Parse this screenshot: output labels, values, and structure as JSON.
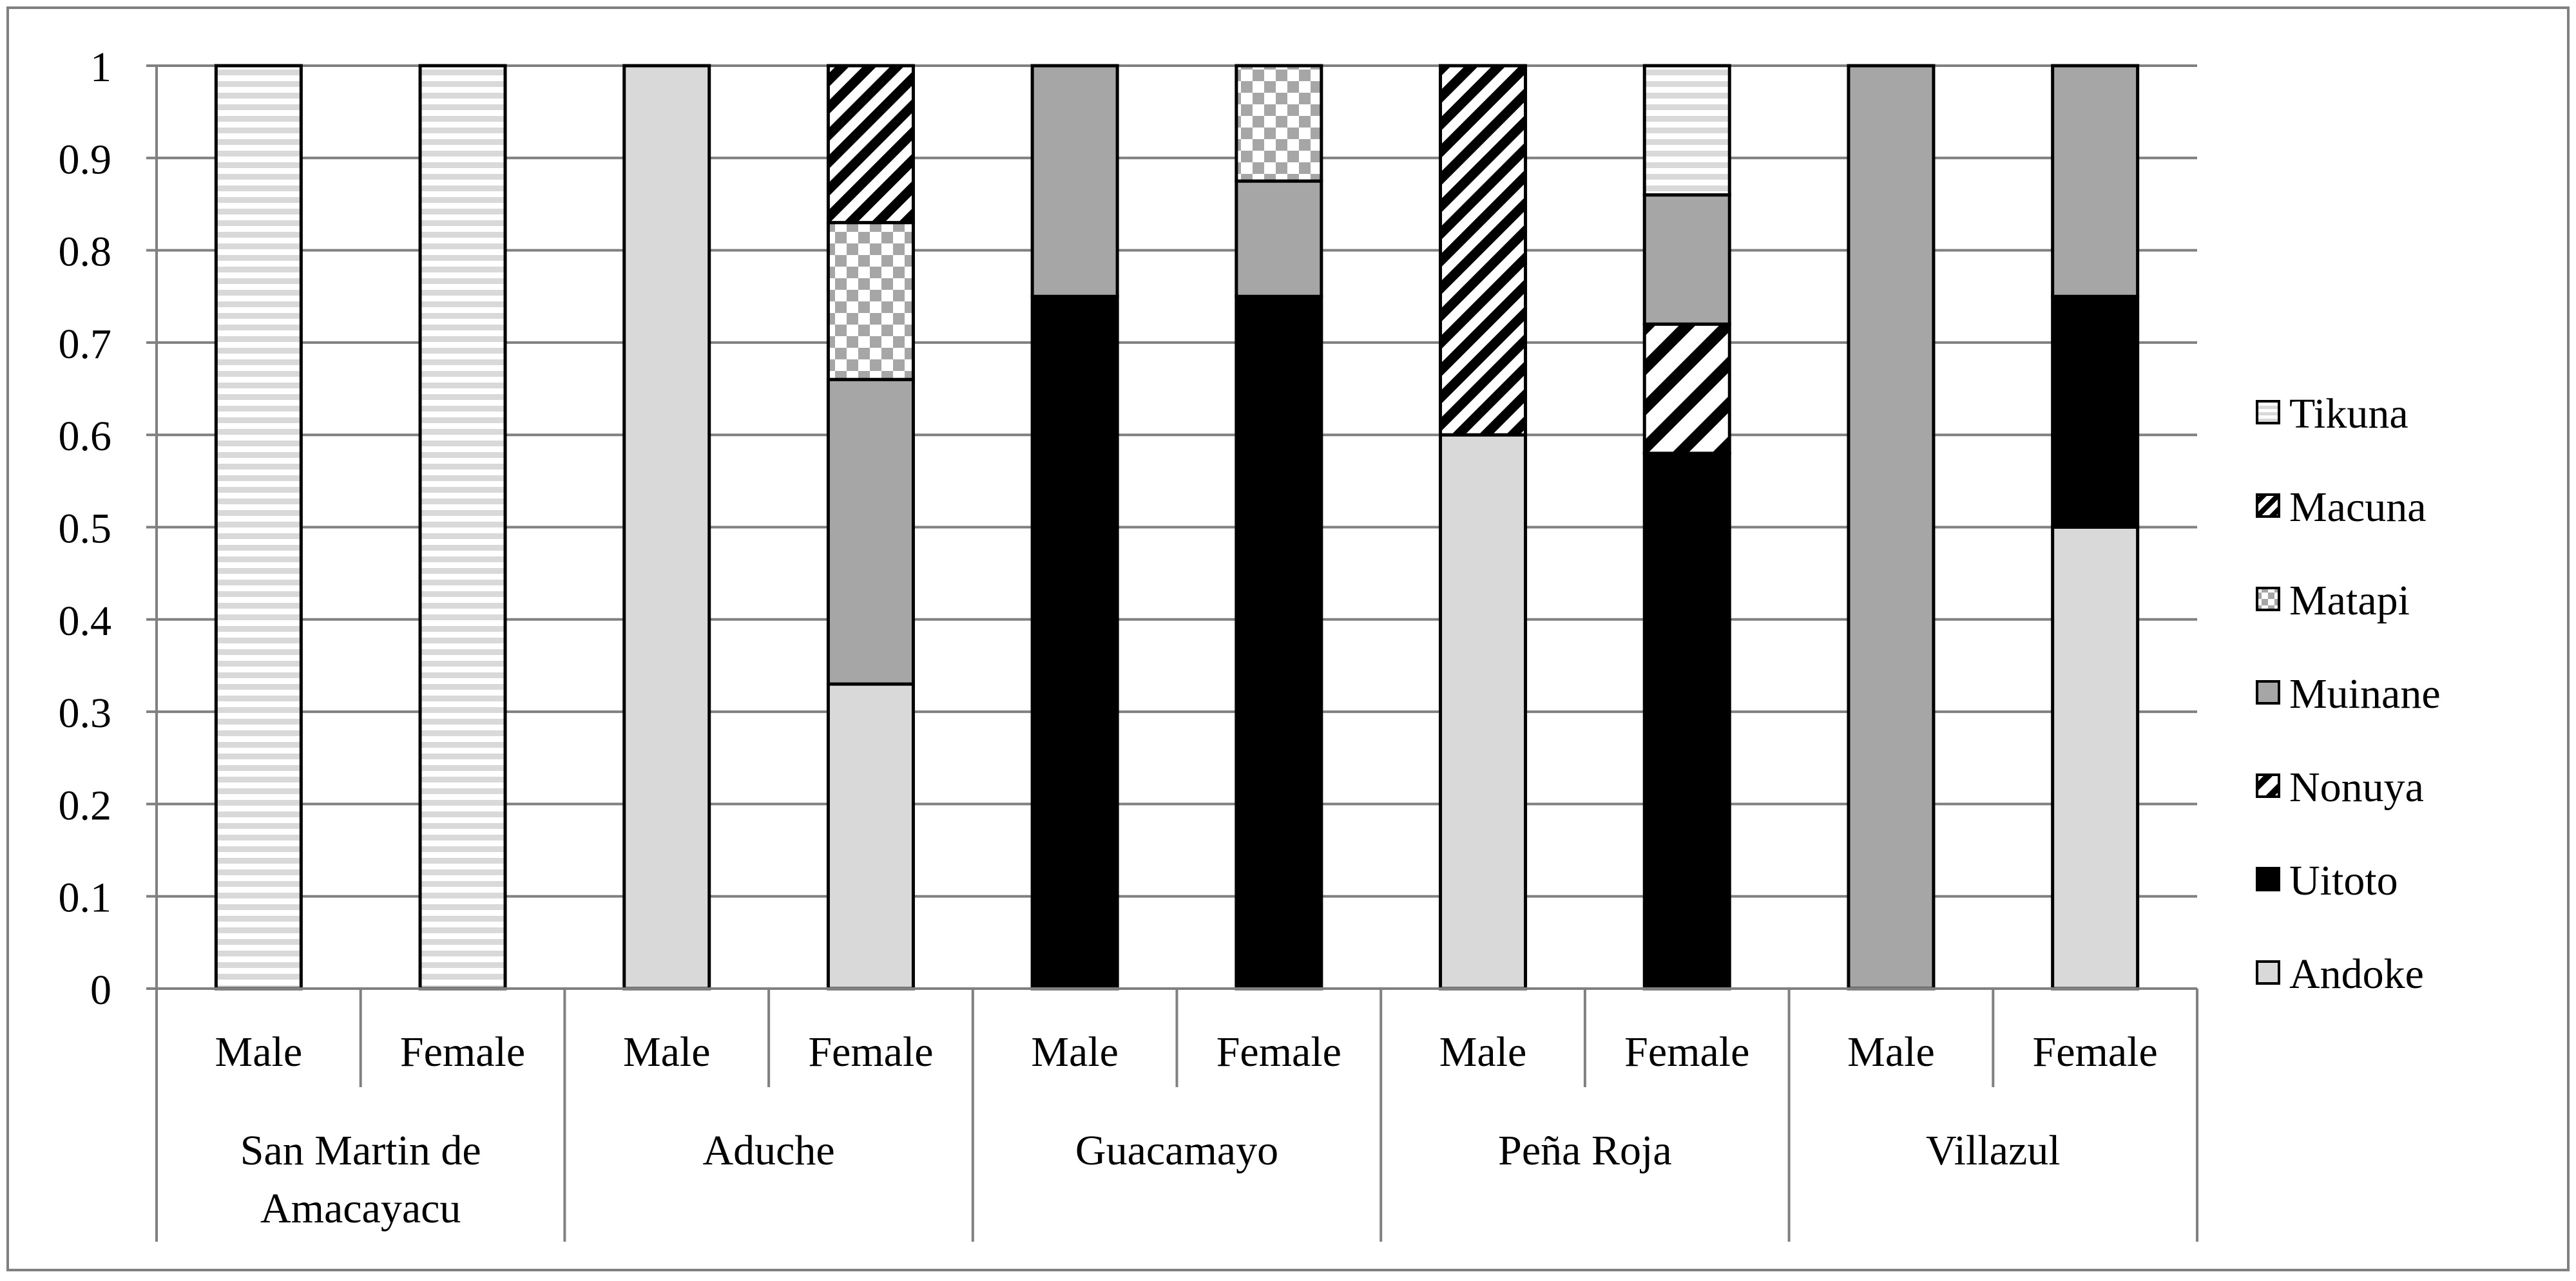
{
  "chart_data": {
    "type": "bar",
    "stacked": true,
    "ylim": [
      0,
      1
    ],
    "yticks": [
      "0",
      "0.1",
      "0.2",
      "0.3",
      "0.4",
      "0.5",
      "0.6",
      "0.7",
      "0.8",
      "0.9",
      "1"
    ],
    "grid": true,
    "legend_position": "right",
    "groups": [
      {
        "label": "San Martin de Amacayacu",
        "label_lines": [
          "San Martin de",
          "Amacayacu"
        ],
        "categories": [
          "Male",
          "Female"
        ]
      },
      {
        "label": "Aduche",
        "label_lines": [
          "Aduche"
        ],
        "categories": [
          "Male",
          "Female"
        ]
      },
      {
        "label": "Guacamayo",
        "label_lines": [
          "Guacamayo"
        ],
        "categories": [
          "Male",
          "Female"
        ]
      },
      {
        "label": "Peña Roja",
        "label_lines": [
          "Peña Roja"
        ],
        "categories": [
          "Male",
          "Female"
        ]
      },
      {
        "label": "Villazul",
        "label_lines": [
          "Villazul"
        ],
        "categories": [
          "Male",
          "Female"
        ]
      }
    ],
    "series": [
      {
        "name": "Andoke",
        "pattern": "solid-light",
        "values": [
          0,
          0,
          1,
          0.33,
          0,
          0,
          0.6,
          0,
          0,
          0.5
        ]
      },
      {
        "name": "Uitoto",
        "pattern": "solid-black",
        "values": [
          0,
          0,
          0,
          0,
          0.75,
          0.75,
          0,
          0.58,
          0,
          0.25
        ]
      },
      {
        "name": "Nonuya",
        "pattern": "wide-diagonal",
        "values": [
          0,
          0,
          0,
          0,
          0,
          0,
          0,
          0.14,
          0,
          0
        ]
      },
      {
        "name": "Muinane",
        "pattern": "solid-gray",
        "values": [
          0,
          0,
          0,
          0.33,
          0.25,
          0.125,
          0,
          0.14,
          1,
          0.25
        ]
      },
      {
        "name": "Matapi",
        "pattern": "checker",
        "values": [
          0,
          0,
          0,
          0.17,
          0,
          0.125,
          0,
          0,
          0,
          0
        ]
      },
      {
        "name": "Macuna",
        "pattern": "narrow-diagonal",
        "values": [
          0,
          0,
          0,
          0.17,
          0,
          0,
          0.4,
          0,
          0,
          0
        ]
      },
      {
        "name": "Tikuna",
        "pattern": "horizontal-stripes",
        "values": [
          1,
          1,
          0,
          0,
          0,
          0,
          0,
          0.14,
          0,
          0
        ]
      }
    ],
    "legend_order": [
      "Tikuna",
      "Macuna",
      "Matapi",
      "Muinane",
      "Nonuya",
      "Uitoto",
      "Andoke"
    ],
    "colors": {
      "light": "#d9d9d9",
      "gray": "#a6a6a6",
      "black": "#000000",
      "grid": "#808080",
      "border": "#808080"
    }
  }
}
